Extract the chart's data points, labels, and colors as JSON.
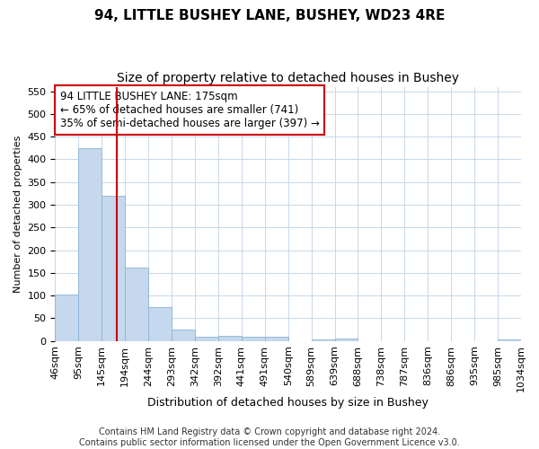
{
  "title": "94, LITTLE BUSHEY LANE, BUSHEY, WD23 4RE",
  "subtitle": "Size of property relative to detached houses in Bushey",
  "xlabel": "Distribution of detached houses by size in Bushey",
  "ylabel": "Number of detached properties",
  "footer_line1": "Contains HM Land Registry data © Crown copyright and database right 2024.",
  "footer_line2": "Contains public sector information licensed under the Open Government Licence v3.0.",
  "annotation_line1": "94 LITTLE BUSHEY LANE: 175sqm",
  "annotation_line2": "← 65% of detached houses are smaller (741)",
  "annotation_line3": "35% of semi-detached houses are larger (397) →",
  "bin_labels": [
    "46sqm",
    "95sqm",
    "145sqm",
    "194sqm",
    "244sqm",
    "293sqm",
    "342sqm",
    "392sqm",
    "441sqm",
    "491sqm",
    "540sqm",
    "589sqm",
    "639sqm",
    "688sqm",
    "738sqm",
    "787sqm",
    "836sqm",
    "886sqm",
    "935sqm",
    "985sqm",
    "1034sqm"
  ],
  "bar_heights": [
    103,
    425,
    320,
    162,
    75,
    25,
    10,
    12,
    10,
    9,
    0,
    4,
    5,
    0,
    0,
    0,
    0,
    0,
    0,
    3
  ],
  "bar_color": "#c5d8ed",
  "bar_edge_color": "#8cb4d5",
  "vline_color": "#cc0000",
  "vline_bin_index": 2,
  "annotation_box_color": "#cc0000",
  "grid_color": "#c8d8e8",
  "background_color": "#ffffff",
  "plot_bg_color": "#ffffff",
  "ylim": [
    0,
    560
  ],
  "yticks": [
    0,
    50,
    100,
    150,
    200,
    250,
    300,
    350,
    400,
    450,
    500,
    550
  ],
  "title_fontsize": 11,
  "subtitle_fontsize": 10,
  "xlabel_fontsize": 9,
  "ylabel_fontsize": 8,
  "tick_fontsize": 8,
  "annotation_fontsize": 8.5,
  "footer_fontsize": 7
}
